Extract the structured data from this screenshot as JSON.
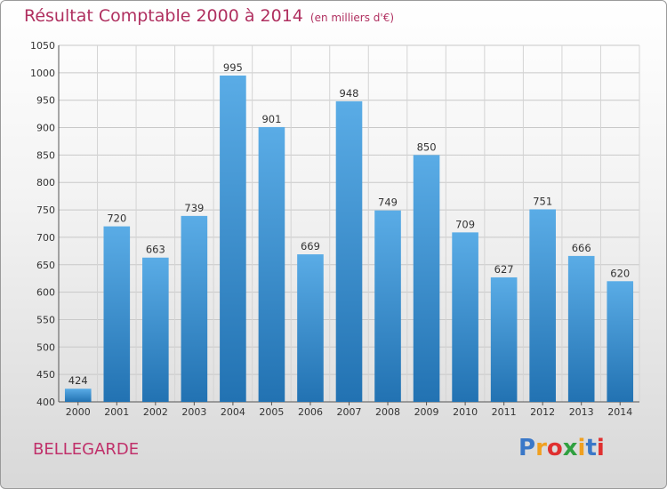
{
  "title": "Résultat Comptable 2000 à 2014",
  "unit": "(en milliers d'€)",
  "commune": "BELLEGARDE",
  "logo": {
    "text": "Proxiti",
    "colors": [
      "#3a78c8",
      "#f0a020",
      "#e03030",
      "#30a040",
      "#f0a020",
      "#3a78c8",
      "#e03030"
    ]
  },
  "colors": {
    "bar_top": "#5aace6",
    "bar_bottom": "#2272b2",
    "title": "#b03060"
  },
  "chart_data": {
    "type": "bar",
    "categories": [
      "2000",
      "2001",
      "2002",
      "2003",
      "2004",
      "2005",
      "2006",
      "2007",
      "2008",
      "2009",
      "2010",
      "2011",
      "2012",
      "2013",
      "2014"
    ],
    "values": [
      424,
      720,
      663,
      739,
      995,
      901,
      669,
      948,
      749,
      850,
      709,
      627,
      751,
      666,
      620
    ],
    "ylim": [
      400,
      1050
    ],
    "yticks": [
      400,
      450,
      500,
      550,
      600,
      650,
      700,
      750,
      800,
      850,
      900,
      950,
      1000,
      1050
    ],
    "grid": true
  }
}
